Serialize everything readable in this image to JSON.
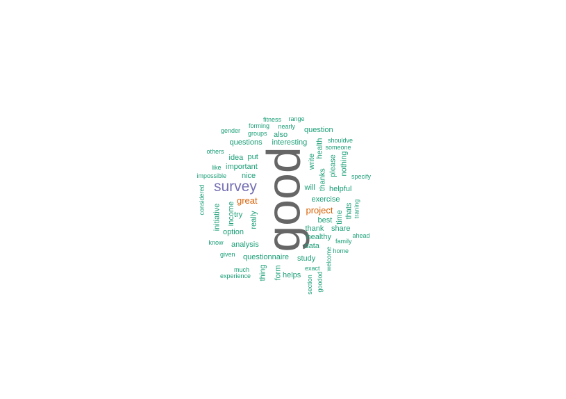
{
  "colors": {
    "dominant": "#666666",
    "primary": "#7570b3",
    "accent": "#d95f02",
    "base": "#1b9e77"
  },
  "words": [
    {
      "text": "good",
      "color": "dominant"
    },
    {
      "text": "survey",
      "color": "primary"
    },
    {
      "text": "great",
      "color": "accent"
    },
    {
      "text": "project",
      "color": "accent"
    },
    {
      "text": "fitness",
      "color": "base"
    },
    {
      "text": "range",
      "color": "base"
    },
    {
      "text": "forming",
      "color": "base"
    },
    {
      "text": "nearly",
      "color": "base"
    },
    {
      "text": "gender",
      "color": "base"
    },
    {
      "text": "groups",
      "color": "base"
    },
    {
      "text": "also",
      "color": "base"
    },
    {
      "text": "question",
      "color": "base"
    },
    {
      "text": "questions",
      "color": "base"
    },
    {
      "text": "interesting",
      "color": "base"
    },
    {
      "text": "shouldve",
      "color": "base"
    },
    {
      "text": "others",
      "color": "base"
    },
    {
      "text": "someone",
      "color": "base"
    },
    {
      "text": "idea",
      "color": "base"
    },
    {
      "text": "put",
      "color": "base"
    },
    {
      "text": "health",
      "color": "base"
    },
    {
      "text": "write",
      "color": "base"
    },
    {
      "text": "like",
      "color": "base"
    },
    {
      "text": "important",
      "color": "base"
    },
    {
      "text": "please",
      "color": "base"
    },
    {
      "text": "nothing",
      "color": "base"
    },
    {
      "text": "impossible",
      "color": "base"
    },
    {
      "text": "nice",
      "color": "base"
    },
    {
      "text": "thanks",
      "color": "base"
    },
    {
      "text": "specify",
      "color": "base"
    },
    {
      "text": "will",
      "color": "base"
    },
    {
      "text": "helpful",
      "color": "base"
    },
    {
      "text": "considered",
      "color": "base"
    },
    {
      "text": "exercise",
      "color": "base"
    },
    {
      "text": "thats",
      "color": "base"
    },
    {
      "text": "traning",
      "color": "base"
    },
    {
      "text": "initiative",
      "color": "base"
    },
    {
      "text": "income",
      "color": "base"
    },
    {
      "text": "time",
      "color": "base"
    },
    {
      "text": "try",
      "color": "base"
    },
    {
      "text": "really",
      "color": "base"
    },
    {
      "text": "best",
      "color": "base"
    },
    {
      "text": "option",
      "color": "base"
    },
    {
      "text": "thank",
      "color": "base"
    },
    {
      "text": "share",
      "color": "base"
    },
    {
      "text": "ahead",
      "color": "base"
    },
    {
      "text": "healthy",
      "color": "base"
    },
    {
      "text": "know",
      "color": "base"
    },
    {
      "text": "analysis",
      "color": "base"
    },
    {
      "text": "family",
      "color": "base"
    },
    {
      "text": "data",
      "color": "base"
    },
    {
      "text": "home",
      "color": "base"
    },
    {
      "text": "given",
      "color": "base"
    },
    {
      "text": "questionnaire",
      "color": "base"
    },
    {
      "text": "study",
      "color": "base"
    },
    {
      "text": "welcome",
      "color": "base"
    },
    {
      "text": "exact",
      "color": "base"
    },
    {
      "text": "much",
      "color": "base"
    },
    {
      "text": "thing",
      "color": "base"
    },
    {
      "text": "form",
      "color": "base"
    },
    {
      "text": "helps",
      "color": "base"
    },
    {
      "text": "experience",
      "color": "base"
    },
    {
      "text": "section",
      "color": "base"
    },
    {
      "text": "goodod",
      "color": "base"
    }
  ]
}
